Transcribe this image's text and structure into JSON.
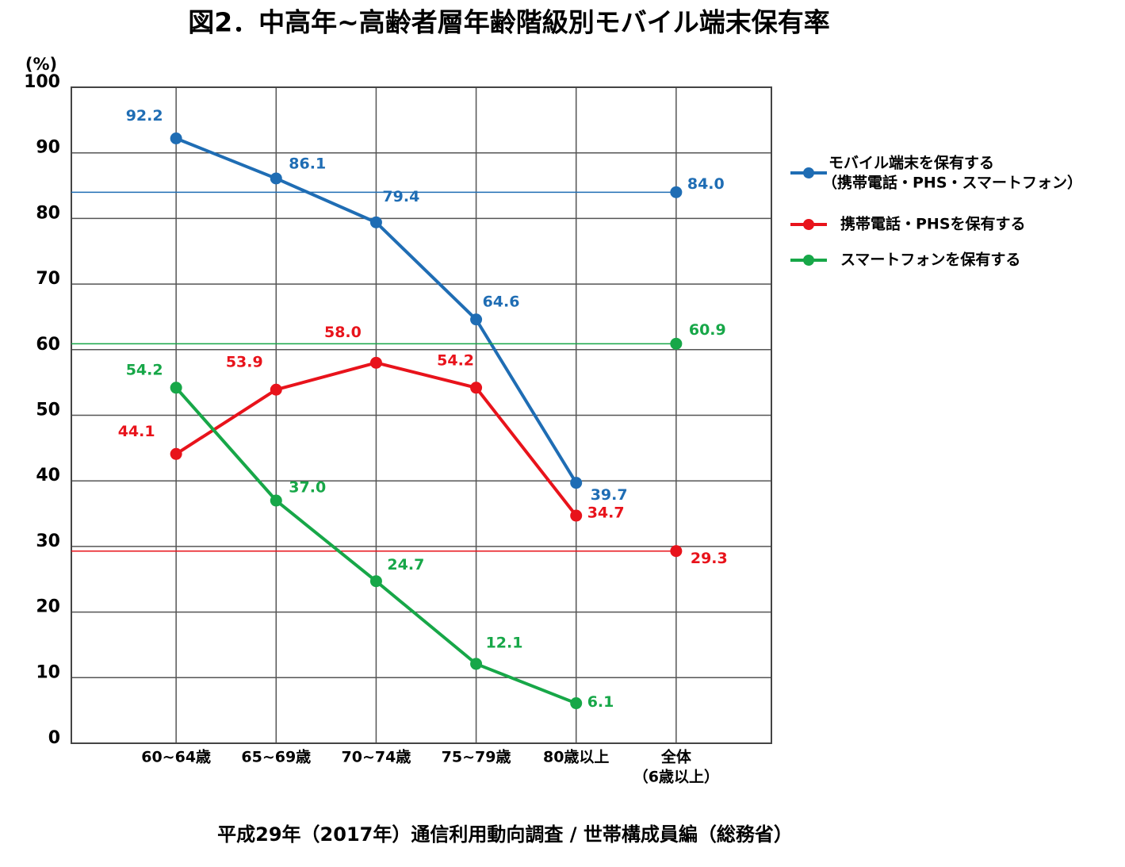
{
  "chart_data": {
    "type": "line",
    "title": "図2．中高年~高齢者層年齢階級別モバイル端末保有率",
    "y_label": "(%)",
    "source": "平成29年（2017年）通信利用動向調査 / 世帯構成員編（総務省）",
    "categories": [
      "60~64歳",
      "65~69歳",
      "70~74歳",
      "75~79歳",
      "80歳以上",
      [
        "全体",
        "（6歳以上）"
      ]
    ],
    "series": [
      {
        "name": [
          "モバイル端末を保有する",
          "（携帯電話・PHS・スマートフォン）"
        ],
        "color": "#1f6db4",
        "values": [
          92.2,
          86.1,
          79.4,
          64.6,
          39.7,
          84.0
        ],
        "value_labels": [
          "92.2",
          "86.1",
          "79.4",
          "64.6",
          "39.7",
          "84.0"
        ]
      },
      {
        "name": [
          "携帯電話・PHSを保有する"
        ],
        "color": "#e8131b",
        "values": [
          44.1,
          53.9,
          58.0,
          54.2,
          34.7,
          29.3
        ],
        "value_labels": [
          "44.1",
          "53.9",
          "58.0",
          "54.2",
          "34.7",
          "29.3"
        ]
      },
      {
        "name": [
          "スマートフォンを保有する"
        ],
        "color": "#17a748",
        "values": [
          54.2,
          37.0,
          24.7,
          12.1,
          6.1,
          60.9
        ],
        "value_labels": [
          "54.2",
          "37.0",
          "24.7",
          "12.1",
          "6.1",
          "60.9"
        ]
      }
    ],
    "ylim": [
      0,
      100
    ],
    "yticks": [
      0,
      10,
      20,
      30,
      40,
      50,
      60,
      70,
      80,
      90,
      100
    ],
    "grid": true
  }
}
